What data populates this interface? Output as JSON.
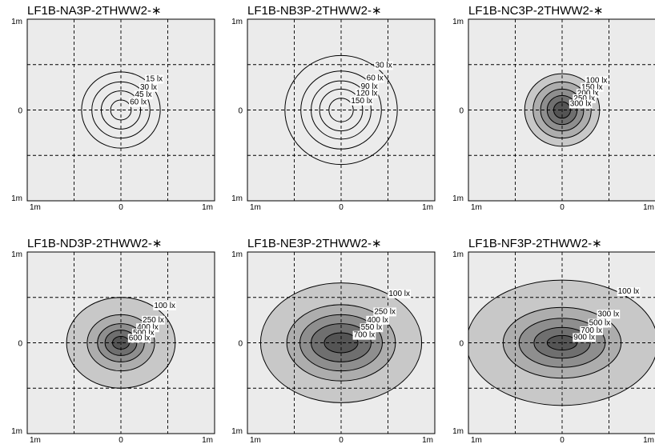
{
  "colors": {
    "background": "#ebebeb",
    "contour_fills": [
      "#ffffff",
      "#c8c8c8",
      "#adadad",
      "#8e8e8e",
      "#6f6f6f",
      "#545454",
      "#3c3c3c"
    ],
    "grid": "#000000"
  },
  "chart_data": [
    {
      "type": "contour",
      "title": "LF1B-NA3P-2THWW2-∗",
      "y_ticks": [
        "1m",
        "0",
        "1m"
      ],
      "x_ticks": [
        "1m",
        "0",
        "1m"
      ],
      "xlim": [
        -1,
        1
      ],
      "ylim": [
        -1,
        1
      ],
      "grid": true,
      "filled": false,
      "contours": [
        {
          "label": "15 lx",
          "rx": 0.42,
          "ry": 0.42
        },
        {
          "label": "30 lx",
          "rx": 0.31,
          "ry": 0.31
        },
        {
          "label": "45 lx",
          "rx": 0.21,
          "ry": 0.21
        },
        {
          "label": "60 lx",
          "rx": 0.11,
          "ry": 0.11
        }
      ]
    },
    {
      "type": "contour",
      "title": "LF1B-NB3P-2THWW2-∗",
      "y_ticks": [
        "1m",
        "0",
        "1m"
      ],
      "x_ticks": [
        "1m",
        "0",
        "1m"
      ],
      "xlim": [
        -1,
        1
      ],
      "ylim": [
        -1,
        1
      ],
      "grid": true,
      "filled": false,
      "contours": [
        {
          "label": "30 lx",
          "rx": 0.6,
          "ry": 0.6
        },
        {
          "label": "60 lx",
          "rx": 0.43,
          "ry": 0.43
        },
        {
          "label": "90 lx",
          "rx": 0.32,
          "ry": 0.32
        },
        {
          "label": "120 lx",
          "rx": 0.23,
          "ry": 0.23
        },
        {
          "label": "150 lx",
          "rx": 0.13,
          "ry": 0.13
        }
      ]
    },
    {
      "type": "contour",
      "title": "LF1B-NC3P-2THWW2-∗",
      "y_ticks": [
        "1m",
        "0",
        "1m"
      ],
      "x_ticks": [
        "1m",
        "0",
        "1m"
      ],
      "xlim": [
        -1,
        1
      ],
      "ylim": [
        -1,
        1
      ],
      "grid": true,
      "filled": true,
      "contours": [
        {
          "label": "100 lx",
          "rx": 0.4,
          "ry": 0.4
        },
        {
          "label": "150 lx",
          "rx": 0.31,
          "ry": 0.31
        },
        {
          "label": "200 lx",
          "rx": 0.23,
          "ry": 0.23
        },
        {
          "label": "250 lx",
          "rx": 0.16,
          "ry": 0.16
        },
        {
          "label": "300 lx",
          "rx": 0.09,
          "ry": 0.09
        }
      ]
    },
    {
      "type": "contour",
      "title": "LF1B-ND3P-2THWW2-∗",
      "y_ticks": [
        "1m",
        "0",
        "1m"
      ],
      "x_ticks": [
        "1m",
        "0",
        "1m"
      ],
      "xlim": [
        -1,
        1
      ],
      "ylim": [
        -1,
        1
      ],
      "grid": true,
      "filled": true,
      "contours": [
        {
          "label": "100 lx",
          "rx": 0.58,
          "ry": 0.5
        },
        {
          "label": "250 lx",
          "rx": 0.36,
          "ry": 0.31
        },
        {
          "label": "400 lx",
          "rx": 0.25,
          "ry": 0.21
        },
        {
          "label": "500 lx",
          "rx": 0.17,
          "ry": 0.14
        },
        {
          "label": "600 lx",
          "rx": 0.09,
          "ry": 0.07
        }
      ]
    },
    {
      "type": "contour",
      "title": "LF1B-NE3P-2THWW2-∗",
      "y_ticks": [
        "1m",
        "0",
        "1m"
      ],
      "x_ticks": [
        "1m",
        "0",
        "1m"
      ],
      "xlim": [
        -1,
        1
      ],
      "ylim": [
        -1,
        1
      ],
      "grid": true,
      "filled": true,
      "contours": [
        {
          "label": "100 lx",
          "rx": 0.86,
          "ry": 0.66
        },
        {
          "label": "250 lx",
          "rx": 0.58,
          "ry": 0.42
        },
        {
          "label": "400 lx",
          "rx": 0.44,
          "ry": 0.31
        },
        {
          "label": "550 lx",
          "rx": 0.32,
          "ry": 0.21
        },
        {
          "label": "700 lx",
          "rx": 0.18,
          "ry": 0.11
        }
      ]
    },
    {
      "type": "contour",
      "title": "LF1B-NF3P-2THWW2-∗",
      "y_ticks": [
        "1m",
        "0",
        "1m"
      ],
      "x_ticks": [
        "1m",
        "0",
        "1m"
      ],
      "xlim": [
        -1,
        1
      ],
      "ylim": [
        -1,
        1
      ],
      "grid": true,
      "filled": true,
      "contours": [
        {
          "label": "100 lx",
          "rx": 1.02,
          "ry": 0.69
        },
        {
          "label": "300 lx",
          "rx": 0.63,
          "ry": 0.39
        },
        {
          "label": "500 lx",
          "rx": 0.46,
          "ry": 0.27
        },
        {
          "label": "700 lx",
          "rx": 0.3,
          "ry": 0.17
        },
        {
          "label": "900 lx",
          "rx": 0.16,
          "ry": 0.08
        }
      ]
    }
  ]
}
